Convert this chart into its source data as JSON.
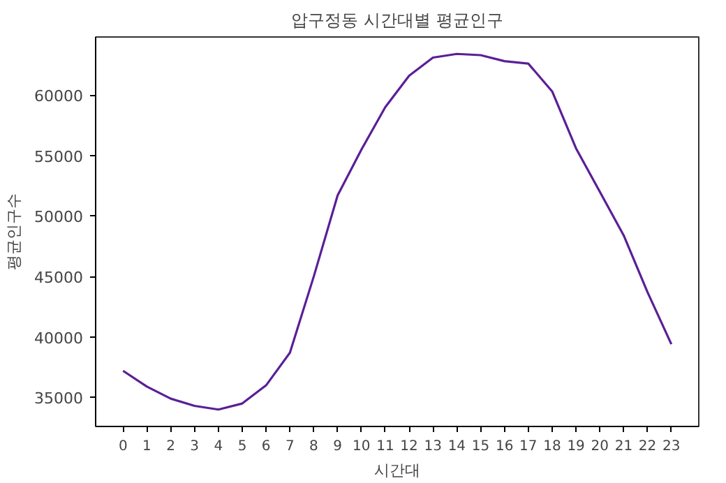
{
  "chart_data": {
    "type": "line",
    "title": "압구정동 시간대별 평균인구",
    "xlabel": "시간대",
    "ylabel": "평균인구수",
    "x": [
      0,
      1,
      2,
      3,
      4,
      5,
      6,
      7,
      8,
      9,
      10,
      11,
      12,
      13,
      14,
      15,
      16,
      17,
      18,
      19,
      20,
      21,
      22,
      23
    ],
    "series": [
      {
        "color": "#5a1f96",
        "values": [
          37200,
          35900,
          34900,
          34300,
          34000,
          34500,
          36000,
          38700,
          45000,
          51700,
          55500,
          59000,
          61600,
          63100,
          63400,
          63300,
          62800,
          62600,
          60300,
          55600,
          52000,
          48400,
          43700,
          39400
        ]
      }
    ],
    "xlim": [
      -1.15,
      24.15
    ],
    "xticks": [
      0,
      1,
      2,
      3,
      4,
      5,
      6,
      7,
      8,
      9,
      10,
      11,
      12,
      13,
      14,
      15,
      16,
      17,
      18,
      19,
      20,
      21,
      22,
      23
    ],
    "ylim": [
      32600,
      64800
    ],
    "yticks": [
      35000,
      40000,
      45000,
      50000,
      55000,
      60000
    ],
    "grid": false,
    "marker": "none",
    "line_style": "solid"
  }
}
